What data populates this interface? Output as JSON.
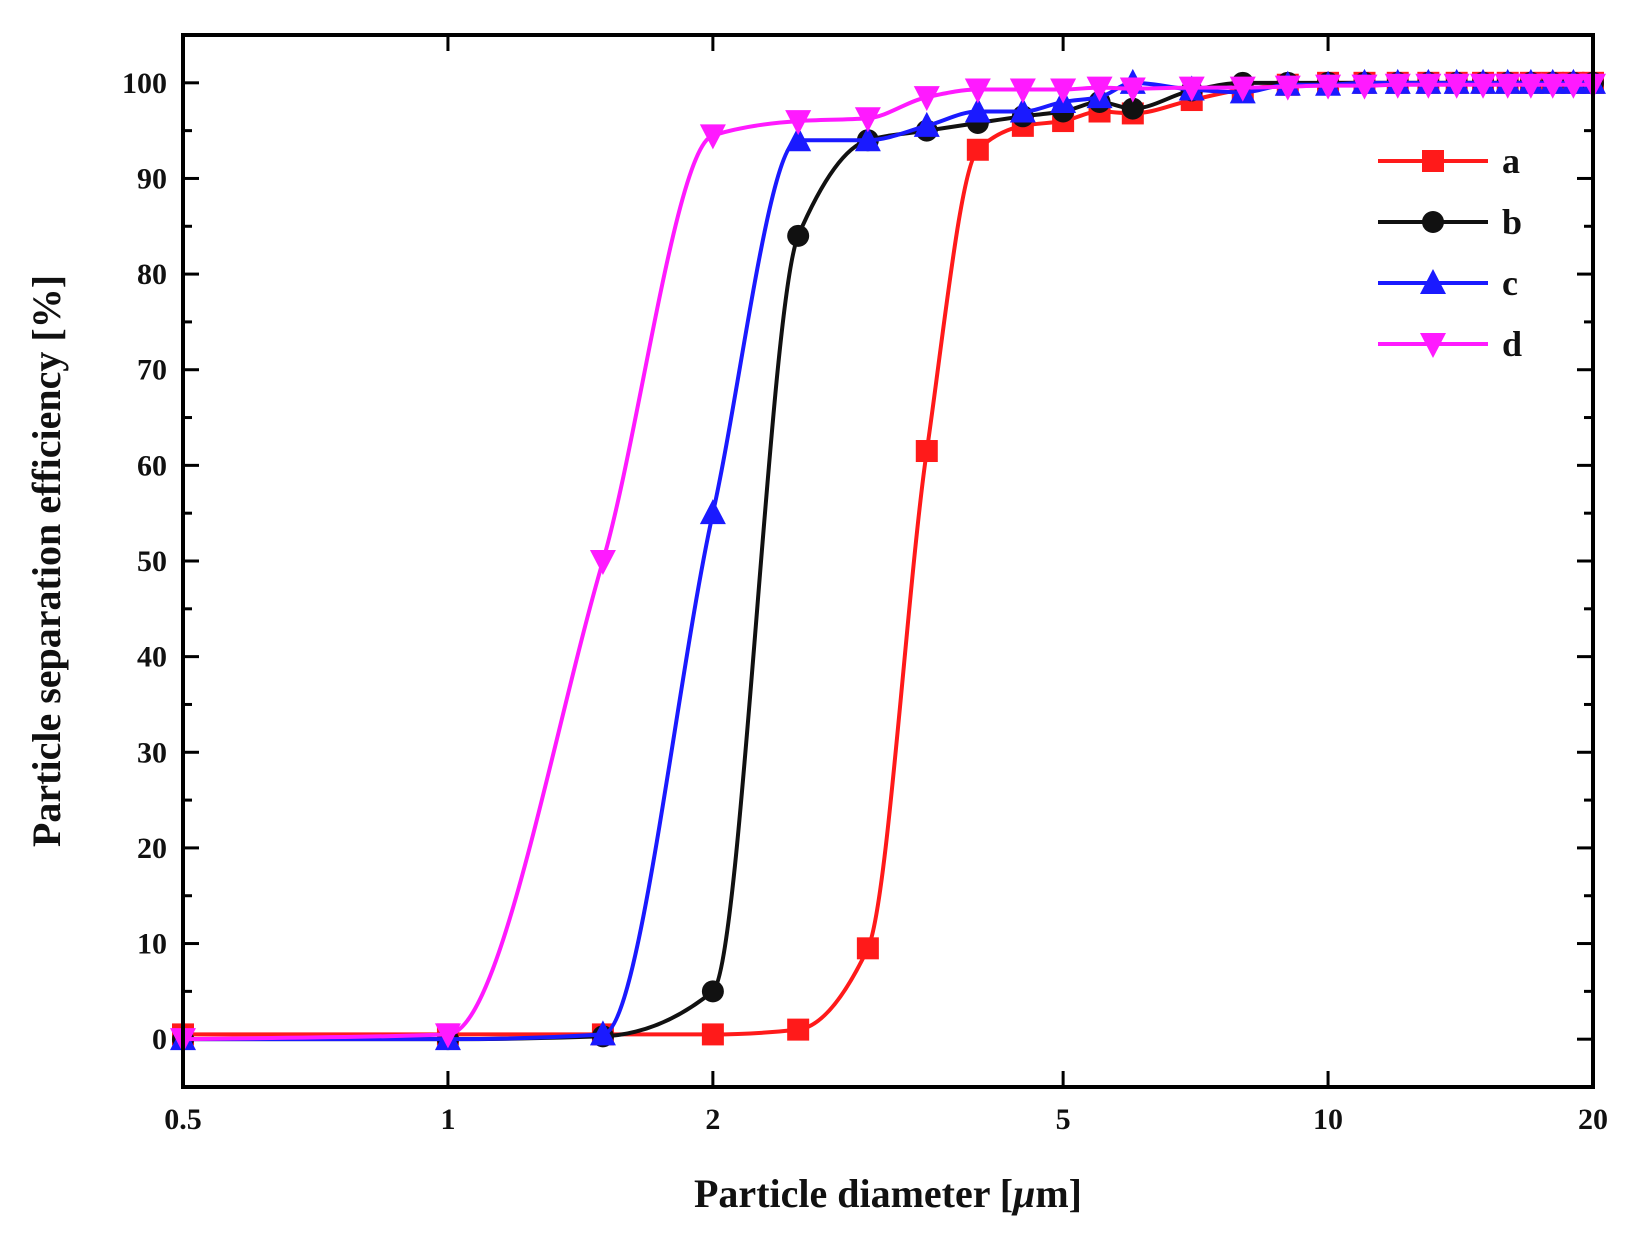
{
  "chart_data": {
    "type": "line",
    "title": "",
    "xlabel": "Particle diameter [",
    "xlabel_mu": "μ",
    "xlabel_unit": "m]",
    "ylabel": "Particle separation efficiency [%]",
    "x_scale": "log",
    "xlim": [
      0.5,
      20
    ],
    "ylim": [
      -5,
      105
    ],
    "x_ticks": [
      0.5,
      1,
      2,
      5,
      10,
      20
    ],
    "x_tick_labels": [
      "0.5",
      "1",
      "2",
      "5",
      "10",
      "20"
    ],
    "y_ticks": [
      0,
      10,
      20,
      30,
      40,
      50,
      60,
      70,
      80,
      90,
      100
    ],
    "y_tick_labels": [
      "0",
      "10",
      "20",
      "30",
      "40",
      "50",
      "60",
      "70",
      "80",
      "90",
      "100"
    ],
    "legend_position": "top-right",
    "series": [
      {
        "name": "a",
        "color": "#ff1a1a",
        "marker": "square",
        "points": [
          [
            0.5,
            0.5
          ],
          [
            1,
            0.5
          ],
          [
            1.5,
            0.5
          ],
          [
            2,
            0.5
          ],
          [
            2.5,
            1
          ],
          [
            3,
            9.5
          ],
          [
            3.5,
            61.5
          ],
          [
            4,
            93
          ],
          [
            4.5,
            95.5
          ],
          [
            5,
            96
          ],
          [
            5.5,
            97
          ],
          [
            6,
            96.8
          ],
          [
            7,
            98.2
          ],
          [
            8,
            99.3
          ],
          [
            9,
            99.8
          ],
          [
            10,
            100
          ],
          [
            11,
            100
          ],
          [
            12,
            100
          ],
          [
            13,
            100
          ],
          [
            14,
            100
          ],
          [
            15,
            100
          ],
          [
            16,
            100
          ],
          [
            17,
            100
          ],
          [
            18,
            100
          ],
          [
            19,
            100
          ],
          [
            20,
            100
          ]
        ]
      },
      {
        "name": "b",
        "color": "#111111",
        "marker": "circle",
        "points": [
          [
            0.5,
            0
          ],
          [
            1,
            0
          ],
          [
            1.5,
            0.3
          ],
          [
            2,
            5
          ],
          [
            2.5,
            84
          ],
          [
            3,
            94
          ],
          [
            3.5,
            95
          ],
          [
            4,
            95.8
          ],
          [
            4.5,
            96.5
          ],
          [
            5,
            97
          ],
          [
            5.5,
            98
          ],
          [
            6,
            97.3
          ],
          [
            7,
            99.2
          ],
          [
            8,
            100
          ],
          [
            9,
            100
          ],
          [
            10,
            100
          ],
          [
            11,
            100
          ],
          [
            12,
            100
          ],
          [
            13,
            100
          ],
          [
            14,
            100
          ],
          [
            15,
            100
          ],
          [
            16,
            100
          ],
          [
            17,
            100
          ],
          [
            18,
            100
          ],
          [
            19,
            100
          ],
          [
            20,
            100
          ]
        ]
      },
      {
        "name": "c",
        "color": "#1a1aff",
        "marker": "triangle-up",
        "points": [
          [
            0.5,
            0
          ],
          [
            1,
            0
          ],
          [
            1.5,
            0.5
          ],
          [
            2,
            55
          ],
          [
            2.5,
            94
          ],
          [
            3,
            94
          ],
          [
            3.5,
            95.5
          ],
          [
            4,
            97
          ],
          [
            4.5,
            97
          ],
          [
            5,
            98
          ],
          [
            5.5,
            98.5
          ],
          [
            6,
            100
          ],
          [
            7,
            99.3
          ],
          [
            8,
            99
          ],
          [
            9,
            99.8
          ],
          [
            10,
            99.8
          ],
          [
            11,
            100
          ],
          [
            12,
            100
          ],
          [
            13,
            100
          ],
          [
            14,
            100
          ],
          [
            15,
            100
          ],
          [
            16,
            100
          ],
          [
            17,
            100
          ],
          [
            18,
            100
          ],
          [
            19,
            100
          ],
          [
            20,
            100
          ]
        ]
      },
      {
        "name": "d",
        "color": "#ff1aff",
        "marker": "triangle-down",
        "points": [
          [
            0.5,
            0
          ],
          [
            1,
            0.5
          ],
          [
            1.5,
            50
          ],
          [
            2,
            94.5
          ],
          [
            2.5,
            96
          ],
          [
            3,
            96.3
          ],
          [
            3.5,
            98.5
          ],
          [
            4,
            99.3
          ],
          [
            4.5,
            99.3
          ],
          [
            5,
            99.3
          ],
          [
            5.5,
            99.5
          ],
          [
            6,
            99.4
          ],
          [
            7,
            99.5
          ],
          [
            8,
            99.5
          ],
          [
            9,
            99.6
          ],
          [
            10,
            99.7
          ],
          [
            11,
            99.7
          ],
          [
            12,
            99.8
          ],
          [
            13,
            99.8
          ],
          [
            14,
            99.8
          ],
          [
            15,
            99.8
          ],
          [
            16,
            99.8
          ],
          [
            17,
            99.8
          ],
          [
            18,
            99.8
          ],
          [
            19,
            99.8
          ],
          [
            20,
            99.8
          ]
        ]
      }
    ]
  }
}
